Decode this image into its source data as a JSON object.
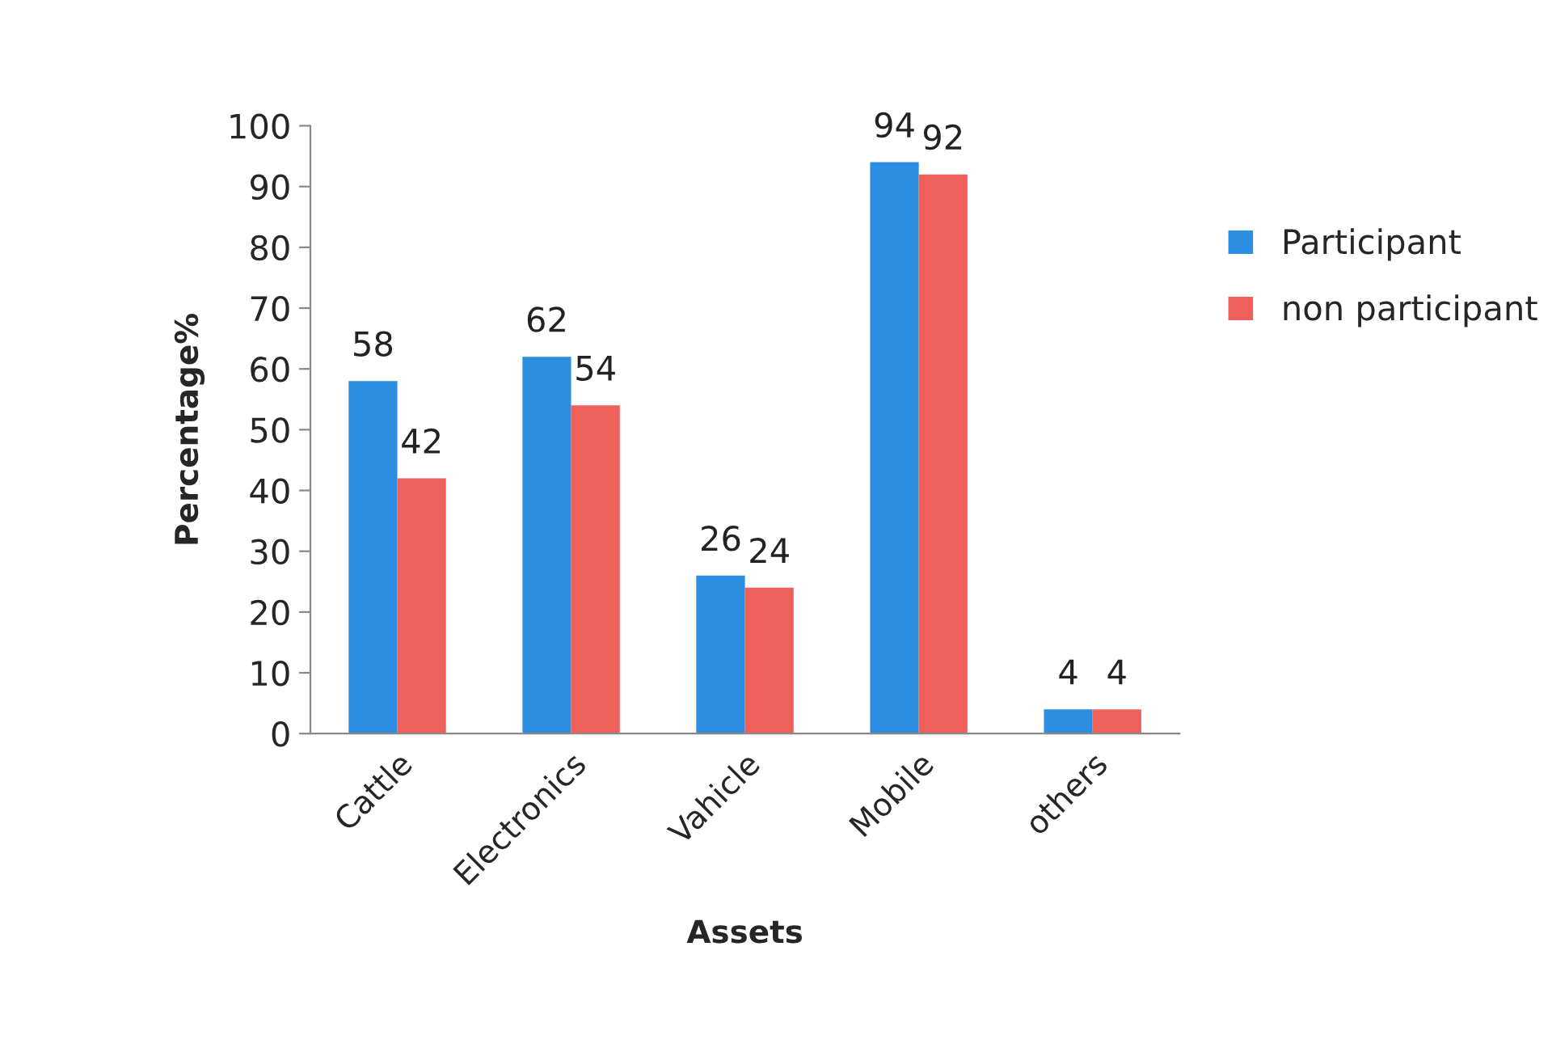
{
  "chart_data": {
    "type": "bar",
    "xlabel": "Assets",
    "ylabel": "Percentage%",
    "categories": [
      "Cattle",
      "Electronics",
      "Vahicle",
      "Mobile",
      "others"
    ],
    "series": [
      {
        "name": "Participant",
        "color": "#2b8ee0",
        "values": [
          58,
          62,
          26,
          94,
          4
        ]
      },
      {
        "name": "non participant",
        "color": "#f0605a",
        "values": [
          42,
          54,
          24,
          92,
          4
        ]
      }
    ],
    "ylim": [
      0,
      100
    ],
    "yticks": [
      0,
      10,
      20,
      30,
      40,
      50,
      60,
      70,
      80,
      90,
      100
    ],
    "data_labels": true,
    "grid": false,
    "legend": "right"
  }
}
